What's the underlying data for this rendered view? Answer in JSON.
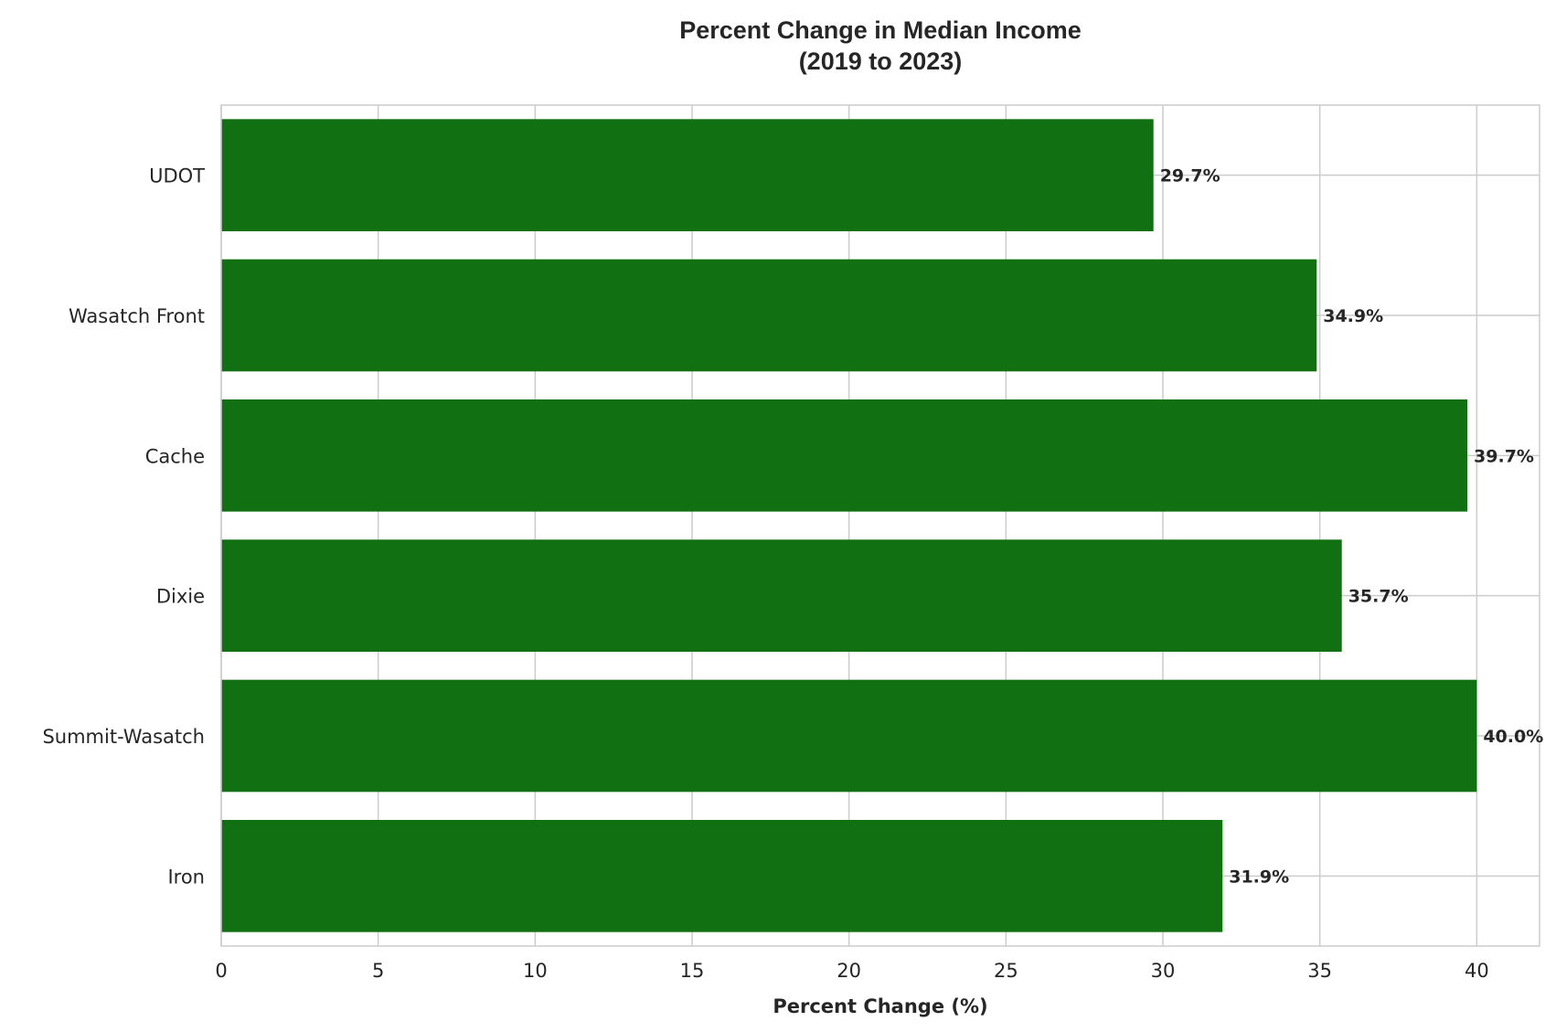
{
  "chart_data": {
    "type": "bar",
    "orientation": "horizontal",
    "title_lines": [
      "Percent Change in Median Income",
      "(2019 to 2023)"
    ],
    "xlabel": "Percent Change (%)",
    "ylabel": "",
    "categories": [
      "UDOT",
      "Wasatch Front",
      "Cache",
      "Dixie",
      "Summit-Wasatch",
      "Iron"
    ],
    "values": [
      29.7,
      34.9,
      39.7,
      35.7,
      40.0,
      31.9
    ],
    "data_labels": [
      "29.7%",
      "34.9%",
      "39.7%",
      "35.7%",
      "40.0%",
      "31.9%"
    ],
    "xlim": [
      0,
      42
    ],
    "xticks": [
      0,
      5,
      10,
      15,
      20,
      25,
      30,
      35,
      40
    ],
    "grid": true,
    "legend": "none",
    "bar_color": "#117011",
    "grid_color": "#cccccc",
    "frame_color": "#cccccc"
  }
}
